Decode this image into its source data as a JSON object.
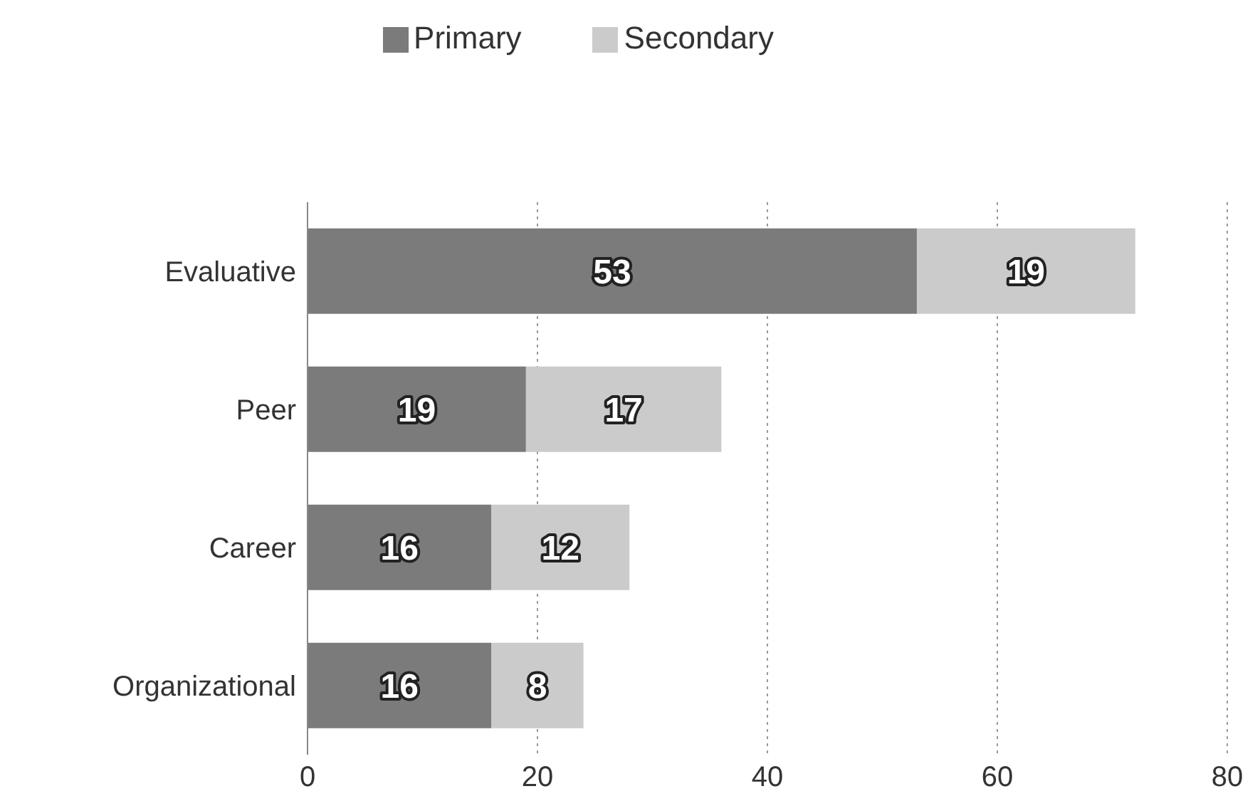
{
  "chart_data": {
    "type": "bar",
    "orientation": "horizontal",
    "stacked": true,
    "categories": [
      "Evaluative",
      "Peer",
      "Career",
      "Organizational"
    ],
    "series": [
      {
        "name": "Primary",
        "color": "#7b7b7b",
        "values": [
          53,
          19,
          16,
          16
        ]
      },
      {
        "name": "Secondary",
        "color": "#cbcbcb",
        "values": [
          19,
          17,
          12,
          8
        ]
      }
    ],
    "xlim": [
      0,
      80
    ],
    "xticks": [
      0,
      20,
      40,
      60,
      80
    ],
    "grid": "x",
    "legend": "top",
    "data_labels": true
  }
}
